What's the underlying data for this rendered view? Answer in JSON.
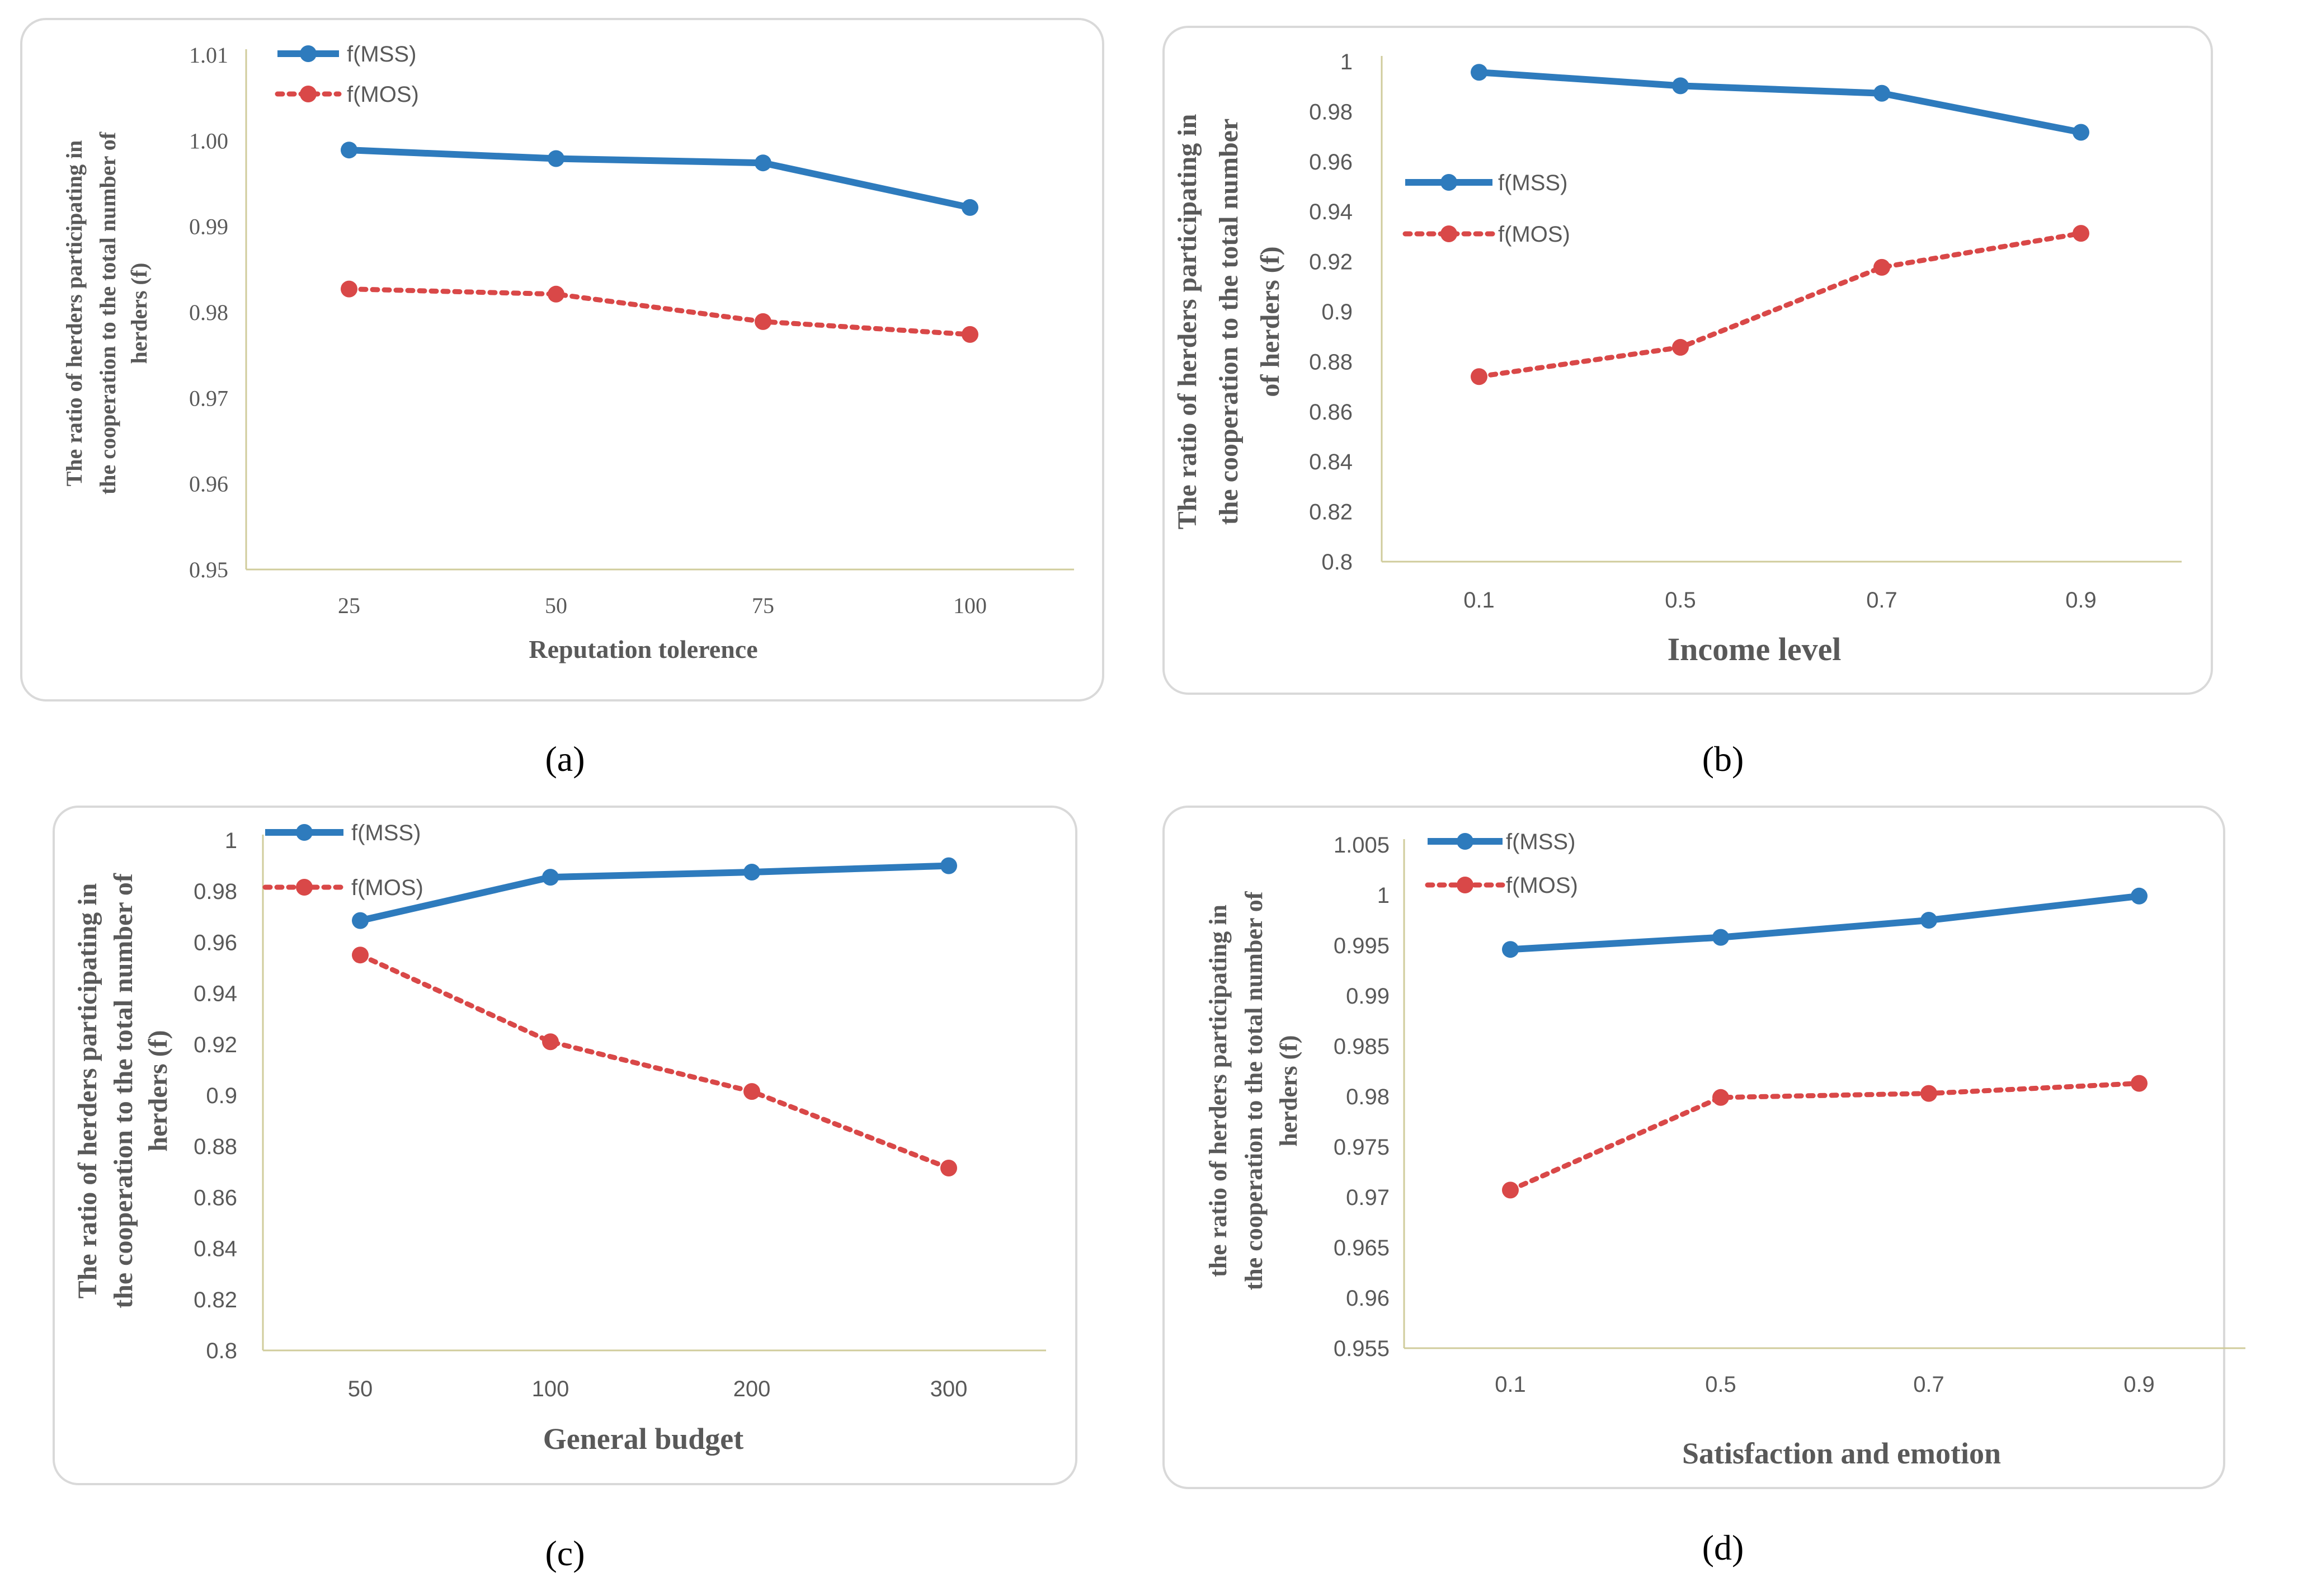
{
  "colors": {
    "mss": "#2e7bbd",
    "mos": "#d94848",
    "axis": "#d0cc9c",
    "text": "#595959"
  },
  "chart_data": [
    {
      "id": "a",
      "type": "line",
      "caption": "(a)",
      "title": "",
      "xlabel": "Reputation tolerence",
      "ylabel": [
        "The ratio of herders participating in",
        "the cooperation to the total number of",
        "herders (f)"
      ],
      "categories": [
        "25",
        "50",
        "75",
        "100"
      ],
      "yticks": [
        "0.95",
        "0.96",
        "0.97",
        "0.98",
        "0.99",
        "1.00",
        "1.01"
      ],
      "ylim": [
        0.95,
        1.01
      ],
      "series": [
        {
          "name": "f(MSS)",
          "values": [
            0.9989,
            0.9979,
            0.9974,
            0.9922
          ]
        },
        {
          "name": "f(MOS)",
          "values": [
            0.9827,
            0.9821,
            0.9789,
            0.9774
          ]
        }
      ]
    },
    {
      "id": "b",
      "type": "line",
      "caption": "(b)",
      "title": "",
      "xlabel": "Income level",
      "ylabel": [
        "The ratio of herders participating in",
        "the cooperation to the total number",
        "of herders (f)"
      ],
      "categories": [
        "0.1",
        "0.5",
        "0.7",
        "0.9"
      ],
      "yticks": [
        "0.8",
        "0.82",
        "0.84",
        "0.86",
        "0.88",
        "0.9",
        "0.92",
        "0.94",
        "0.96",
        "0.98",
        "1"
      ],
      "ylim": [
        0.8,
        1.0
      ],
      "series": [
        {
          "name": "f(MSS)",
          "values": [
            0.9957,
            0.9903,
            0.9873,
            0.9717
          ]
        },
        {
          "name": "f(MOS)",
          "values": [
            0.874,
            0.8857,
            0.9177,
            0.9313
          ]
        }
      ]
    },
    {
      "id": "c",
      "type": "line",
      "caption": "(c)",
      "title": "",
      "xlabel": "General budget",
      "ylabel": [
        "The ratio of herders participating in",
        "the cooperation to the total number of",
        "herders (f)"
      ],
      "categories": [
        "50",
        "100",
        "200",
        "300"
      ],
      "yticks": [
        "0.8",
        "0.82",
        "0.84",
        "0.86",
        "0.88",
        "0.9",
        "0.92",
        "0.94",
        "0.96",
        "0.98",
        "1"
      ],
      "ylim": [
        0.8,
        1.0
      ],
      "series": [
        {
          "name": "f(MSS)",
          "values": [
            0.9685,
            0.9855,
            0.9875,
            0.99
          ]
        },
        {
          "name": "f(MOS)",
          "values": [
            0.955,
            0.921,
            0.9015,
            0.8715
          ]
        }
      ]
    },
    {
      "id": "d",
      "type": "line",
      "caption": "(d)",
      "title": "",
      "xlabel": "Satisfaction and emotion",
      "ylabel": [
        "the ratio of herders participating in",
        "the cooperation to the total number of",
        "herders (f)"
      ],
      "categories": [
        "0.1",
        "0.5",
        "0.7",
        "0.9"
      ],
      "yticks": [
        "0.955",
        "0.96",
        "0.965",
        "0.97",
        "0.975",
        "0.98",
        "0.985",
        "0.99",
        "0.995",
        "1",
        "1.005"
      ],
      "ylim": [
        0.955,
        1.005
      ],
      "series": [
        {
          "name": "f(MSS)",
          "values": [
            0.9946,
            0.9958,
            0.9975,
            0.9999
          ]
        },
        {
          "name": "f(MOS)",
          "values": [
            0.9707,
            0.9799,
            0.9803,
            0.9813
          ]
        }
      ]
    }
  ]
}
